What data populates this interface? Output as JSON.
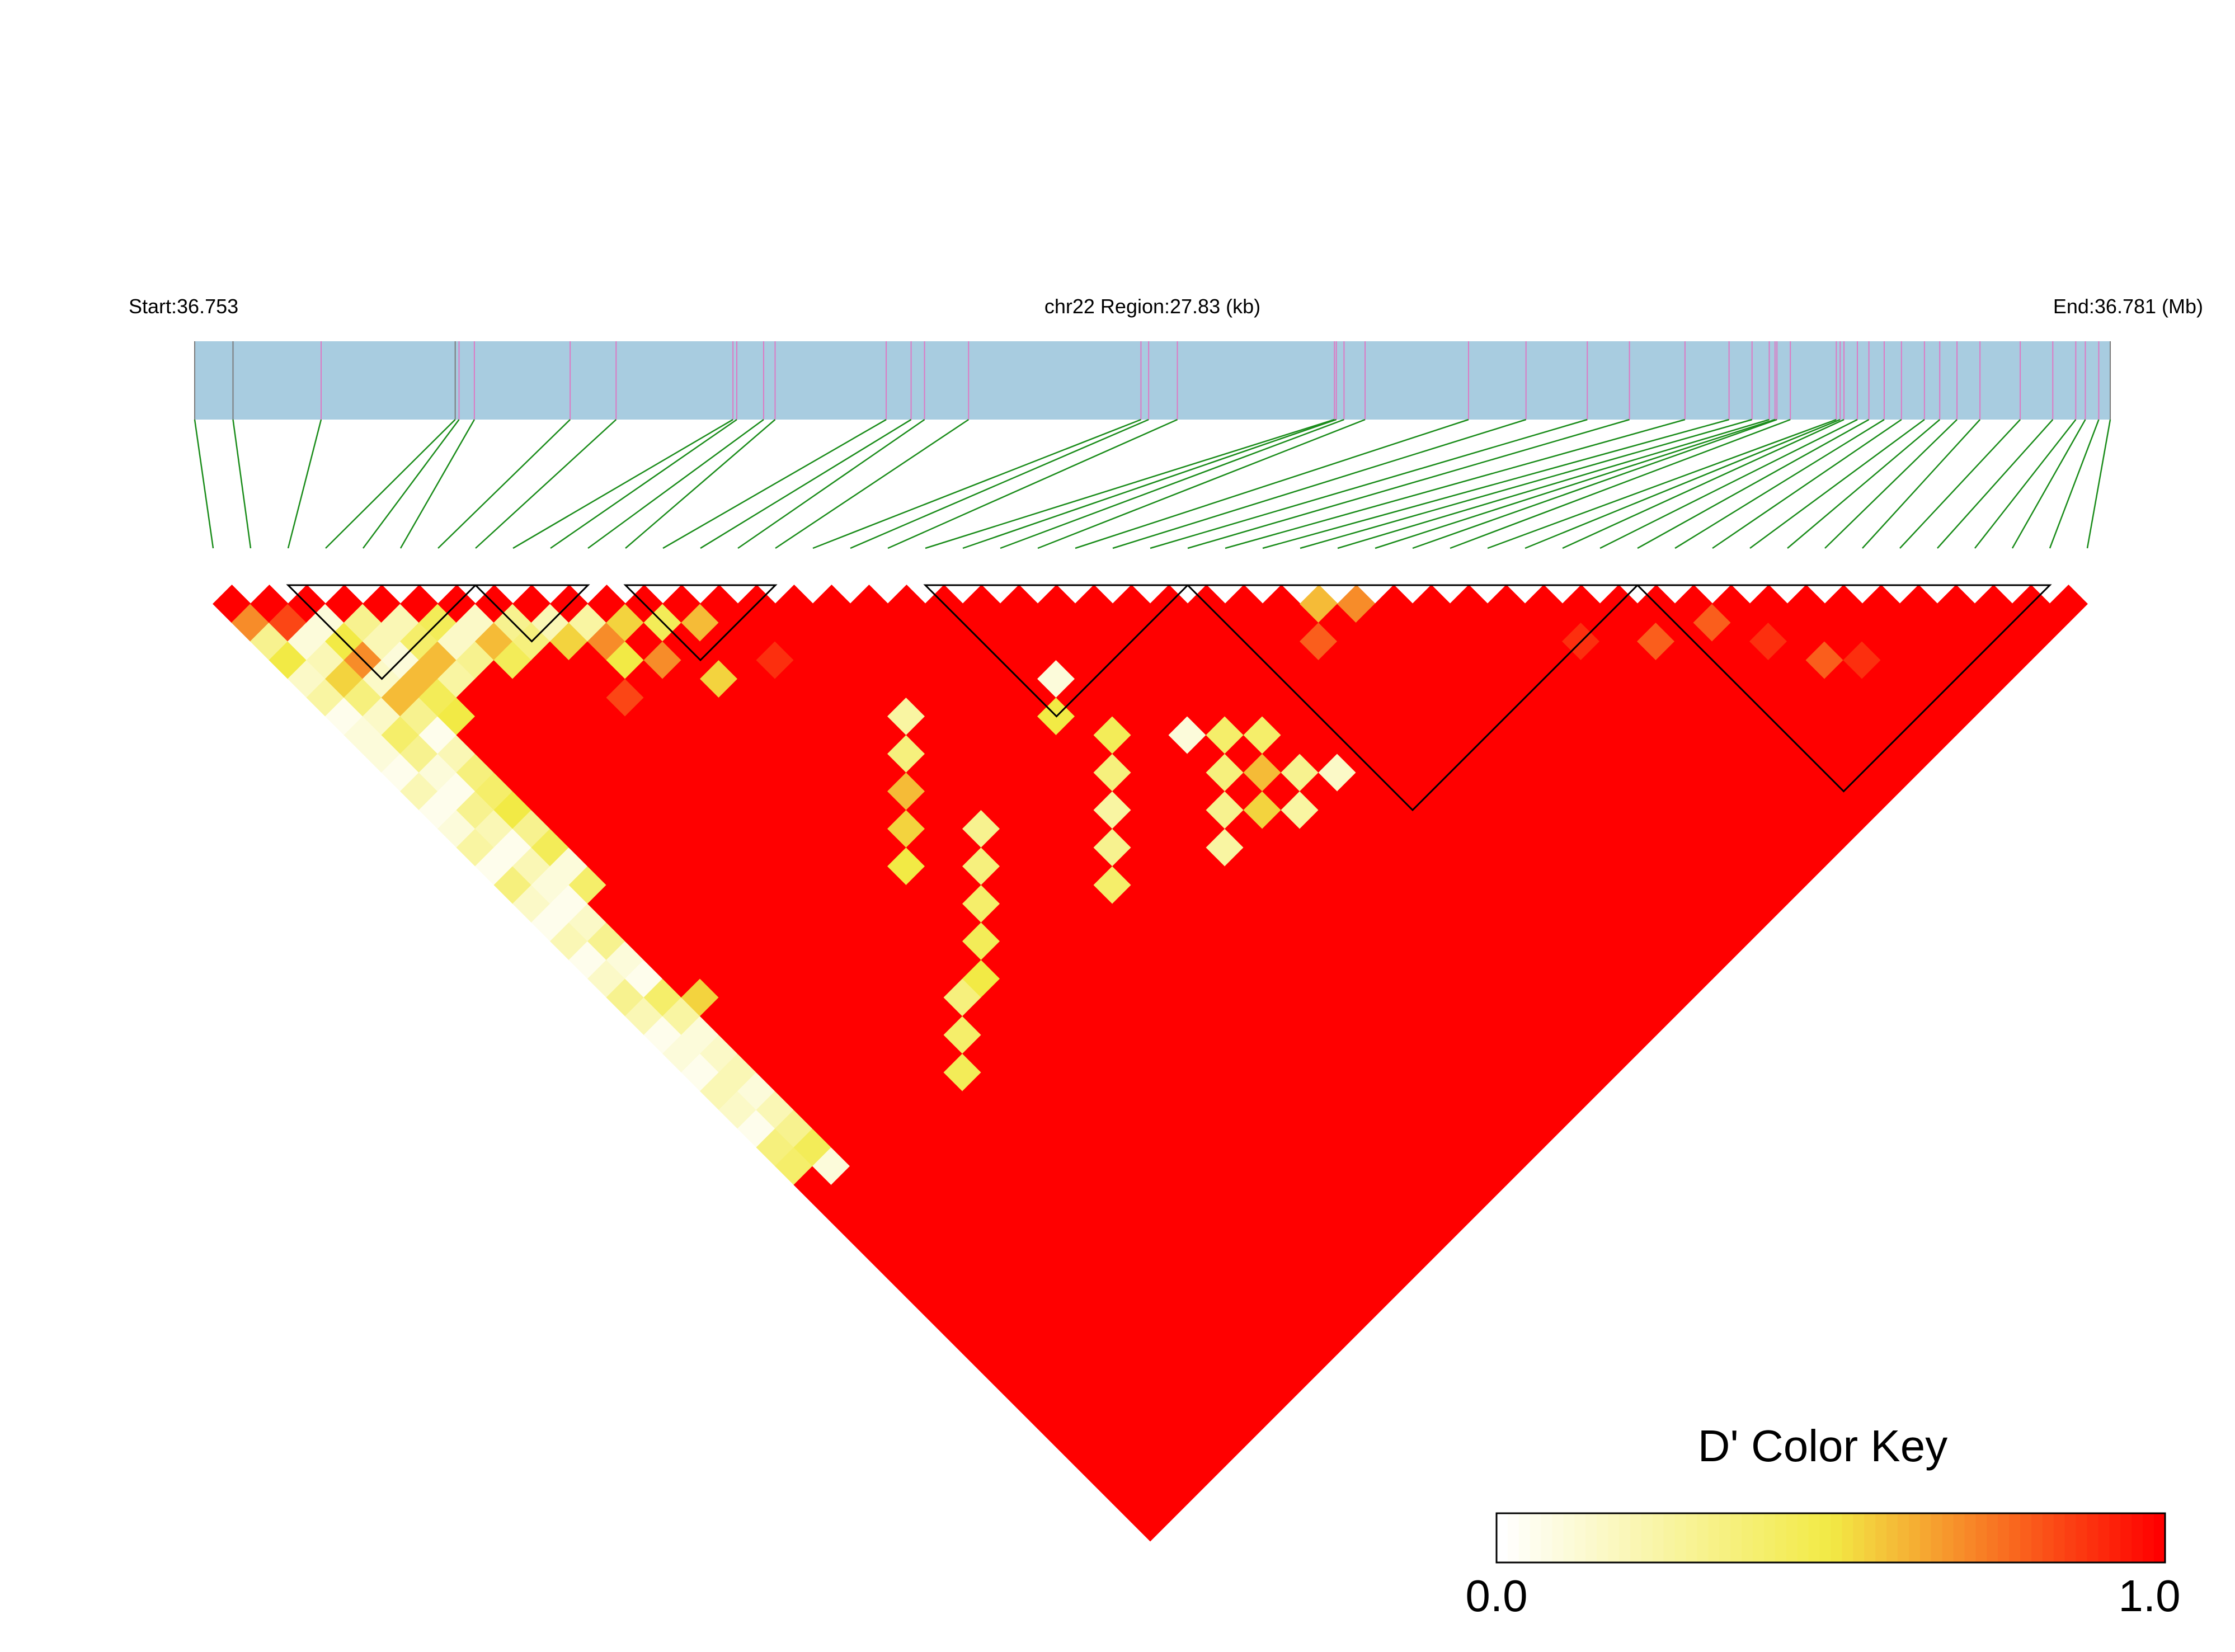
{
  "header": {
    "start_label": "Start:36.753",
    "region_label": "chr22 Region:27.83 (kb)",
    "end_label": "End:36.781 (Mb)"
  },
  "legend": {
    "title": "D' Color Key",
    "min_label": "0.0",
    "max_label": "1.0",
    "gradient_colors": [
      "#ffffff",
      "#f2ea45",
      "#ff0000"
    ]
  },
  "colors": {
    "gene_track": "#a8cce0",
    "snp_tick_neutral": "#7a7a7a",
    "snp_tick_marked": "#dd79c4",
    "connector": "#1a8c1a",
    "strong_ld": "#ff0000",
    "block_outline": "#000000"
  },
  "chart_data": {
    "type": "heatmap",
    "chromosome": "chr22",
    "region_start_mb": 36.753,
    "region_end_mb": 36.781,
    "region_length_kb": 27.83,
    "snp_count": 51,
    "snp_positions_rel": [
      0.0,
      0.02,
      0.066,
      0.136,
      0.138,
      0.146,
      0.196,
      0.22,
      0.281,
      0.283,
      0.297,
      0.303,
      0.361,
      0.374,
      0.381,
      0.404,
      0.494,
      0.498,
      0.513,
      0.595,
      0.596,
      0.6,
      0.611,
      0.665,
      0.695,
      0.727,
      0.749,
      0.778,
      0.801,
      0.813,
      0.822,
      0.825,
      0.826,
      0.833,
      0.857,
      0.859,
      0.861,
      0.868,
      0.874,
      0.882,
      0.891,
      0.903,
      0.911,
      0.92,
      0.932,
      0.953,
      0.97,
      0.982,
      0.987,
      0.994,
      1.0
    ],
    "metric": "D'",
    "value_range": [
      0.0,
      1.0
    ],
    "ld_blocks": [
      [
        2,
        7
      ],
      [
        7,
        10
      ],
      [
        11,
        15
      ],
      [
        19,
        26
      ],
      [
        26,
        38
      ],
      [
        38,
        49
      ]
    ],
    "weak_pairs": [
      [
        0,
        2,
        0.7
      ],
      [
        1,
        3,
        0.85
      ],
      [
        2,
        4,
        0.1
      ],
      [
        3,
        5,
        0.3
      ],
      [
        4,
        6,
        0.2
      ],
      [
        5,
        7,
        0.45
      ],
      [
        6,
        8,
        0.15
      ],
      [
        7,
        9,
        0.3
      ],
      [
        8,
        10,
        0.2
      ],
      [
        9,
        11,
        0.25
      ],
      [
        10,
        12,
        0.55
      ],
      [
        11,
        13,
        0.45
      ],
      [
        12,
        14,
        0.6
      ],
      [
        0,
        3,
        0.3
      ],
      [
        1,
        4,
        0.1
      ],
      [
        2,
        5,
        0.5
      ],
      [
        3,
        6,
        0.2
      ],
      [
        4,
        7,
        0.4
      ],
      [
        5,
        8,
        0.15
      ],
      [
        6,
        9,
        0.6
      ],
      [
        7,
        10,
        0.35
      ],
      [
        8,
        11,
        0.55
      ],
      [
        9,
        12,
        0.7
      ],
      [
        0,
        4,
        0.5
      ],
      [
        1,
        5,
        0.2
      ],
      [
        2,
        6,
        0.7
      ],
      [
        3,
        7,
        0.1
      ],
      [
        4,
        8,
        0.6
      ],
      [
        5,
        9,
        0.3
      ],
      [
        6,
        10,
        0.45
      ],
      [
        0,
        5,
        0.15
      ],
      [
        1,
        6,
        0.55
      ],
      [
        2,
        7,
        0.15
      ],
      [
        3,
        8,
        0.6
      ],
      [
        4,
        9,
        0.25
      ],
      [
        0,
        6,
        0.25
      ],
      [
        1,
        7,
        0.35
      ],
      [
        2,
        8,
        0.6
      ],
      [
        3,
        9,
        0.45
      ],
      [
        0,
        7,
        0.05
      ],
      [
        1,
        8,
        0.15
      ],
      [
        2,
        9,
        0.3
      ],
      [
        3,
        10,
        0.5
      ],
      [
        0,
        8,
        0.1
      ],
      [
        1,
        9,
        0.4
      ],
      [
        2,
        10,
        0.05
      ],
      [
        0,
        9,
        0.1
      ],
      [
        1,
        10,
        0.3
      ],
      [
        2,
        11,
        0.2
      ],
      [
        0,
        10,
        0.05
      ],
      [
        1,
        11,
        0.1
      ],
      [
        2,
        12,
        0.35
      ],
      [
        0,
        11,
        0.2
      ],
      [
        1,
        12,
        0.05
      ],
      [
        2,
        13,
        0.4
      ],
      [
        0,
        12,
        0.05
      ],
      [
        1,
        13,
        0.3
      ],
      [
        2,
        14,
        0.5
      ],
      [
        0,
        13,
        0.1
      ],
      [
        1,
        14,
        0.2
      ],
      [
        2,
        15,
        0.3
      ],
      [
        0,
        14,
        0.25
      ],
      [
        1,
        15,
        0.05
      ],
      [
        2,
        16,
        0.45
      ],
      [
        0,
        15,
        0.05
      ],
      [
        1,
        16,
        0.2
      ],
      [
        2,
        17,
        0.1
      ],
      [
        0,
        16,
        0.35
      ],
      [
        1,
        17,
        0.1
      ],
      [
        2,
        18,
        0.4
      ],
      [
        0,
        17,
        0.15
      ],
      [
        1,
        18,
        0.05
      ],
      [
        0,
        18,
        0.05
      ],
      [
        1,
        19,
        0.15
      ],
      [
        0,
        19,
        0.2
      ],
      [
        1,
        20,
        0.3
      ],
      [
        0,
        20,
        0.05
      ],
      [
        1,
        21,
        0.1
      ],
      [
        0,
        21,
        0.15
      ],
      [
        1,
        22,
        0.05
      ],
      [
        0,
        22,
        0.3
      ],
      [
        1,
        23,
        0.4
      ],
      [
        2,
        24,
        0.55
      ],
      [
        0,
        23,
        0.2
      ],
      [
        1,
        24,
        0.25
      ],
      [
        0,
        24,
        0.05
      ],
      [
        1,
        25,
        0.1
      ],
      [
        0,
        25,
        0.1
      ],
      [
        1,
        26,
        0.15
      ],
      [
        0,
        26,
        0.05
      ],
      [
        1,
        27,
        0.2
      ],
      [
        0,
        27,
        0.2
      ],
      [
        1,
        28,
        0.1
      ],
      [
        0,
        28,
        0.15
      ],
      [
        1,
        29,
        0.2
      ],
      [
        0,
        29,
        0.05
      ],
      [
        1,
        30,
        0.3
      ],
      [
        0,
        30,
        0.35
      ],
      [
        1,
        31,
        0.45
      ],
      [
        0,
        31,
        0.4
      ],
      [
        1,
        32,
        0.1
      ],
      [
        15,
        22,
        0.25
      ],
      [
        14,
        23,
        0.35
      ],
      [
        13,
        24,
        0.6
      ],
      [
        12,
        25,
        0.55
      ],
      [
        11,
        26,
        0.5
      ],
      [
        14,
        27,
        0.3
      ],
      [
        13,
        28,
        0.35
      ],
      [
        12,
        29,
        0.4
      ],
      [
        11,
        30,
        0.45
      ],
      [
        10,
        31,
        0.5
      ],
      [
        9,
        31,
        0.35
      ],
      [
        8,
        32,
        0.4
      ],
      [
        7,
        33,
        0.45
      ],
      [
        20,
        28,
        0.45
      ],
      [
        19,
        29,
        0.35
      ],
      [
        18,
        30,
        0.25
      ],
      [
        17,
        31,
        0.3
      ],
      [
        16,
        32,
        0.4
      ],
      [
        23,
        31,
        0.4
      ],
      [
        22,
        32,
        0.35
      ],
      [
        21,
        33,
        0.3
      ],
      [
        20,
        34,
        0.25
      ],
      [
        22,
        30,
        0.1
      ],
      [
        24,
        32,
        0.4
      ],
      [
        23,
        33,
        0.6
      ],
      [
        22,
        34,
        0.55
      ],
      [
        24,
        34,
        0.3
      ],
      [
        23,
        35,
        0.25
      ],
      [
        25,
        35,
        0.15
      ],
      [
        29,
        30,
        0.6
      ],
      [
        30,
        31,
        0.7
      ],
      [
        28,
        31,
        0.8
      ],
      [
        20,
        25,
        0.1
      ],
      [
        19,
        26,
        0.5
      ],
      [
        8,
        14,
        0.85
      ],
      [
        9,
        13,
        0.5
      ],
      [
        10,
        14,
        0.7
      ],
      [
        11,
        16,
        0.55
      ],
      [
        13,
        17,
        0.9
      ],
      [
        35,
        38,
        0.9
      ],
      [
        37,
        40,
        0.8
      ],
      [
        39,
        41,
        0.8
      ],
      [
        40,
        43,
        0.9
      ],
      [
        41,
        45,
        0.8
      ],
      [
        42,
        46,
        0.9
      ]
    ]
  }
}
